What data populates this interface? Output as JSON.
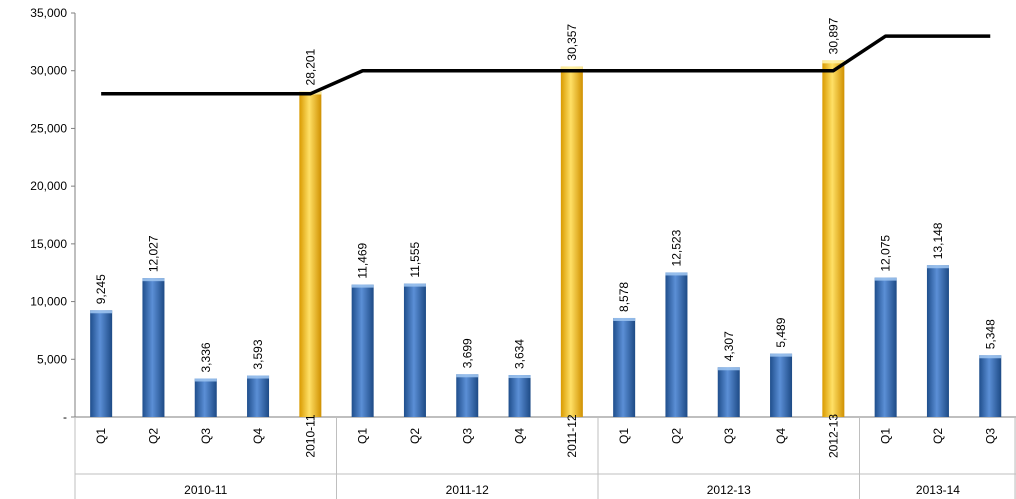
{
  "chart_data": {
    "type": "bar",
    "title": "",
    "xlabel": "",
    "ylabel": "",
    "ylim": [
      0,
      35000
    ],
    "yticks": [
      0,
      5000,
      10000,
      15000,
      20000,
      25000,
      30000,
      35000
    ],
    "ytick_labels": [
      "-",
      "5,000",
      "10,000",
      "15,000",
      "20,000",
      "25,000",
      "30,000",
      "35,000"
    ],
    "grid": false,
    "legend": "none",
    "groups": [
      {
        "label": "2010-11",
        "categories": [
          "Q1",
          "Q2",
          "Q3",
          "Q4",
          "2010-11"
        ]
      },
      {
        "label": "2011-12",
        "categories": [
          "Q1",
          "Q2",
          "Q3",
          "Q4",
          "2011-12"
        ]
      },
      {
        "label": "2012-13",
        "categories": [
          "Q1",
          "Q2",
          "Q3",
          "Q4",
          "2012-13"
        ]
      },
      {
        "label": "2013-14",
        "categories": [
          "Q1",
          "Q2",
          "Q3"
        ]
      }
    ],
    "series": [
      {
        "type": "bar",
        "values": [
          9245,
          12027,
          3336,
          3593,
          28201,
          11469,
          11555,
          3699,
          3634,
          30357,
          8578,
          12523,
          4307,
          5489,
          30897,
          12075,
          13148,
          5348
        ],
        "labels": [
          "9,245",
          "12,027",
          "3,336",
          "3,593",
          "28,201",
          "11,469",
          "11,555",
          "3,699",
          "3,634",
          "30,357",
          "8,578",
          "12,523",
          "4,307",
          "5,489",
          "30,897",
          "12,075",
          "13,148",
          "5,348"
        ],
        "kinds": [
          "quarter",
          "quarter",
          "quarter",
          "quarter",
          "annual",
          "quarter",
          "quarter",
          "quarter",
          "quarter",
          "annual",
          "quarter",
          "quarter",
          "quarter",
          "quarter",
          "annual",
          "quarter",
          "quarter",
          "quarter"
        ]
      },
      {
        "type": "line",
        "values": [
          28000,
          28000,
          28000,
          28000,
          28000,
          30000,
          30000,
          30000,
          30000,
          30000,
          30000,
          30000,
          30000,
          30000,
          30000,
          33000,
          33000,
          33000
        ]
      }
    ],
    "colors": {
      "quarter": "#2E63A8",
      "annual": "#F2B705",
      "line": "#000000"
    }
  }
}
